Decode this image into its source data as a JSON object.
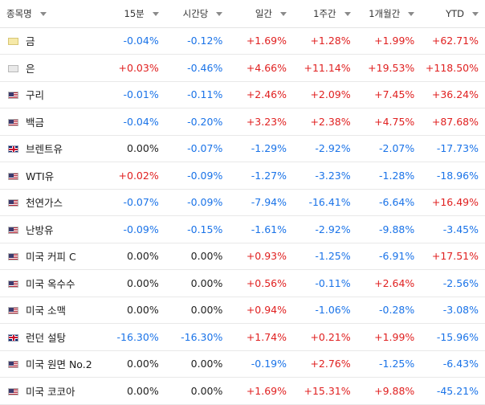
{
  "colors": {
    "positive": "#e02020",
    "negative": "#1a73e8",
    "neutral": "#222222"
  },
  "headers": [
    "종목명",
    "15분",
    "시간당",
    "일간",
    "1주간",
    "1개월간",
    "YTD"
  ],
  "rows": [
    {
      "name": "금",
      "flag": "gold-icon",
      "values": [
        "-0.04%",
        "-0.12%",
        "+1.69%",
        "+1.28%",
        "+1.99%",
        "+62.71%"
      ]
    },
    {
      "name": "은",
      "flag": "silver-icon",
      "values": [
        "+0.03%",
        "-0.46%",
        "+4.66%",
        "+11.14%",
        "+19.53%",
        "+118.50%"
      ]
    },
    {
      "name": "구리",
      "flag": "us-flag-icon",
      "values": [
        "-0.01%",
        "-0.11%",
        "+2.46%",
        "+2.09%",
        "+7.45%",
        "+36.24%"
      ]
    },
    {
      "name": "백금",
      "flag": "us-flag-icon",
      "values": [
        "-0.04%",
        "-0.20%",
        "+3.23%",
        "+2.38%",
        "+4.75%",
        "+87.68%"
      ]
    },
    {
      "name": "브렌트유",
      "flag": "uk-flag-icon",
      "values": [
        "0.00%",
        "-0.07%",
        "-1.29%",
        "-2.92%",
        "-2.07%",
        "-17.73%"
      ]
    },
    {
      "name": "WTI유",
      "flag": "us-flag-icon",
      "values": [
        "+0.02%",
        "-0.09%",
        "-1.27%",
        "-3.23%",
        "-1.28%",
        "-18.96%"
      ]
    },
    {
      "name": "천연가스",
      "flag": "us-flag-icon",
      "values": [
        "-0.07%",
        "-0.09%",
        "-7.94%",
        "-16.41%",
        "-6.64%",
        "+16.49%"
      ]
    },
    {
      "name": "난방유",
      "flag": "us-flag-icon",
      "values": [
        "-0.09%",
        "-0.15%",
        "-1.61%",
        "-2.92%",
        "-9.88%",
        "-3.45%"
      ]
    },
    {
      "name": "미국 커피 C",
      "flag": "us-flag-icon",
      "values": [
        "0.00%",
        "0.00%",
        "+0.93%",
        "-1.25%",
        "-6.91%",
        "+17.51%"
      ]
    },
    {
      "name": "미국 옥수수",
      "flag": "us-flag-icon",
      "values": [
        "0.00%",
        "0.00%",
        "+0.56%",
        "-0.11%",
        "+2.64%",
        "-2.56%"
      ]
    },
    {
      "name": "미국 소맥",
      "flag": "us-flag-icon",
      "values": [
        "0.00%",
        "0.00%",
        "+0.94%",
        "-1.06%",
        "-0.28%",
        "-3.08%"
      ]
    },
    {
      "name": "런던 설탕",
      "flag": "uk-flag-icon",
      "values": [
        "-16.30%",
        "-16.30%",
        "+1.74%",
        "+0.21%",
        "+1.99%",
        "-15.96%"
      ]
    },
    {
      "name": "미국 원면 No.2",
      "flag": "us-flag-icon",
      "values": [
        "0.00%",
        "0.00%",
        "-0.19%",
        "+2.76%",
        "-1.25%",
        "-6.43%"
      ]
    },
    {
      "name": "미국 코코아",
      "flag": "us-flag-icon",
      "values": [
        "0.00%",
        "0.00%",
        "+1.69%",
        "+15.31%",
        "+9.88%",
        "-45.21%"
      ]
    }
  ]
}
